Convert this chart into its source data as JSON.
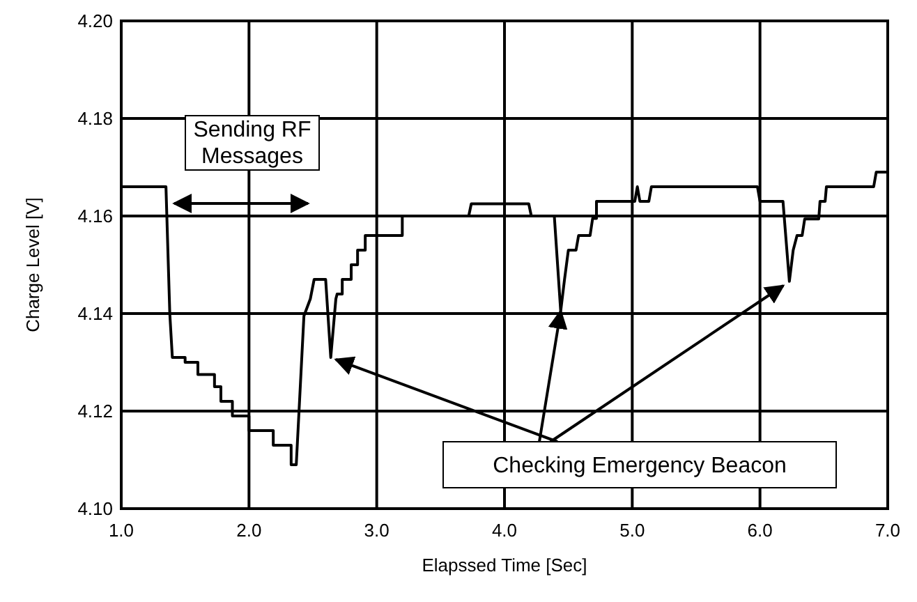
{
  "chart_data": {
    "type": "line",
    "xlabel": "Elapssed Time [Sec]",
    "ylabel": "Charge Level [V]",
    "x": [
      1.0,
      1.35,
      1.38,
      1.4,
      1.5,
      1.5,
      1.6,
      1.6,
      1.73,
      1.73,
      1.78,
      1.78,
      1.87,
      1.87,
      2.0,
      2.0,
      2.19,
      2.19,
      2.33,
      2.33,
      2.37,
      2.43,
      2.48,
      2.51,
      2.6,
      2.64,
      2.68,
      2.69,
      2.73,
      2.73,
      2.8,
      2.8,
      2.85,
      2.85,
      2.91,
      2.91,
      3.2,
      3.2,
      3.72,
      3.74,
      4.19,
      4.21,
      4.39,
      4.44,
      4.47,
      4.5,
      4.56,
      4.58,
      4.67,
      4.69,
      4.72,
      4.72,
      5.02,
      5.04,
      5.06,
      5.13,
      5.15,
      5.98,
      6.0,
      6.18,
      6.23,
      6.26,
      6.29,
      6.33,
      6.35,
      6.46,
      6.47,
      6.51,
      6.52,
      6.89,
      6.91,
      7.0
    ],
    "series": [
      {
        "color": "#000000",
        "values": [
          4.166,
          4.166,
          4.14,
          4.131,
          4.131,
          4.13,
          4.13,
          4.1275,
          4.1275,
          4.125,
          4.125,
          4.122,
          4.122,
          4.119,
          4.119,
          4.116,
          4.116,
          4.113,
          4.113,
          4.109,
          4.109,
          4.1395,
          4.143,
          4.147,
          4.147,
          4.131,
          4.143,
          4.144,
          4.144,
          4.147,
          4.147,
          4.15,
          4.15,
          4.153,
          4.153,
          4.156,
          4.156,
          4.16,
          4.16,
          4.1625,
          4.1625,
          4.16,
          4.16,
          4.1405,
          4.147,
          4.153,
          4.153,
          4.156,
          4.156,
          4.1595,
          4.1595,
          4.163,
          4.163,
          4.166,
          4.163,
          4.163,
          4.166,
          4.166,
          4.163,
          4.163,
          4.1466,
          4.153,
          4.156,
          4.156,
          4.1594,
          4.1594,
          4.163,
          4.163,
          4.166,
          4.166,
          4.169,
          4.169
        ]
      }
    ],
    "xlim": [
      1.0,
      7.0
    ],
    "xticks": [
      {
        "value": 1,
        "label": "1.0"
      },
      {
        "value": 2,
        "label": "2.0"
      },
      {
        "value": 3,
        "label": "3.0"
      },
      {
        "value": 4,
        "label": "4.0"
      },
      {
        "value": 5,
        "label": "5.0"
      },
      {
        "value": 6,
        "label": "6.0"
      },
      {
        "value": 7,
        "label": "7.0"
      }
    ],
    "ylim": [
      4.1,
      4.2
    ],
    "yticks": [
      {
        "value": 4.1,
        "label": "4.10"
      },
      {
        "value": 4.12,
        "label": "4.12"
      },
      {
        "value": 4.14,
        "label": "4.14"
      },
      {
        "value": 4.16,
        "label": "4.16"
      },
      {
        "value": 4.18,
        "label": "4.18"
      },
      {
        "value": 4.2,
        "label": "4.20"
      }
    ],
    "grid": true,
    "marker": "none",
    "line_style": "solid",
    "annotations": [
      "Sending RF\nMessages",
      {
        "text": "Checking Emergency Beacon",
        "x": 4.44,
        "y": 4.1405
      }
    ]
  }
}
